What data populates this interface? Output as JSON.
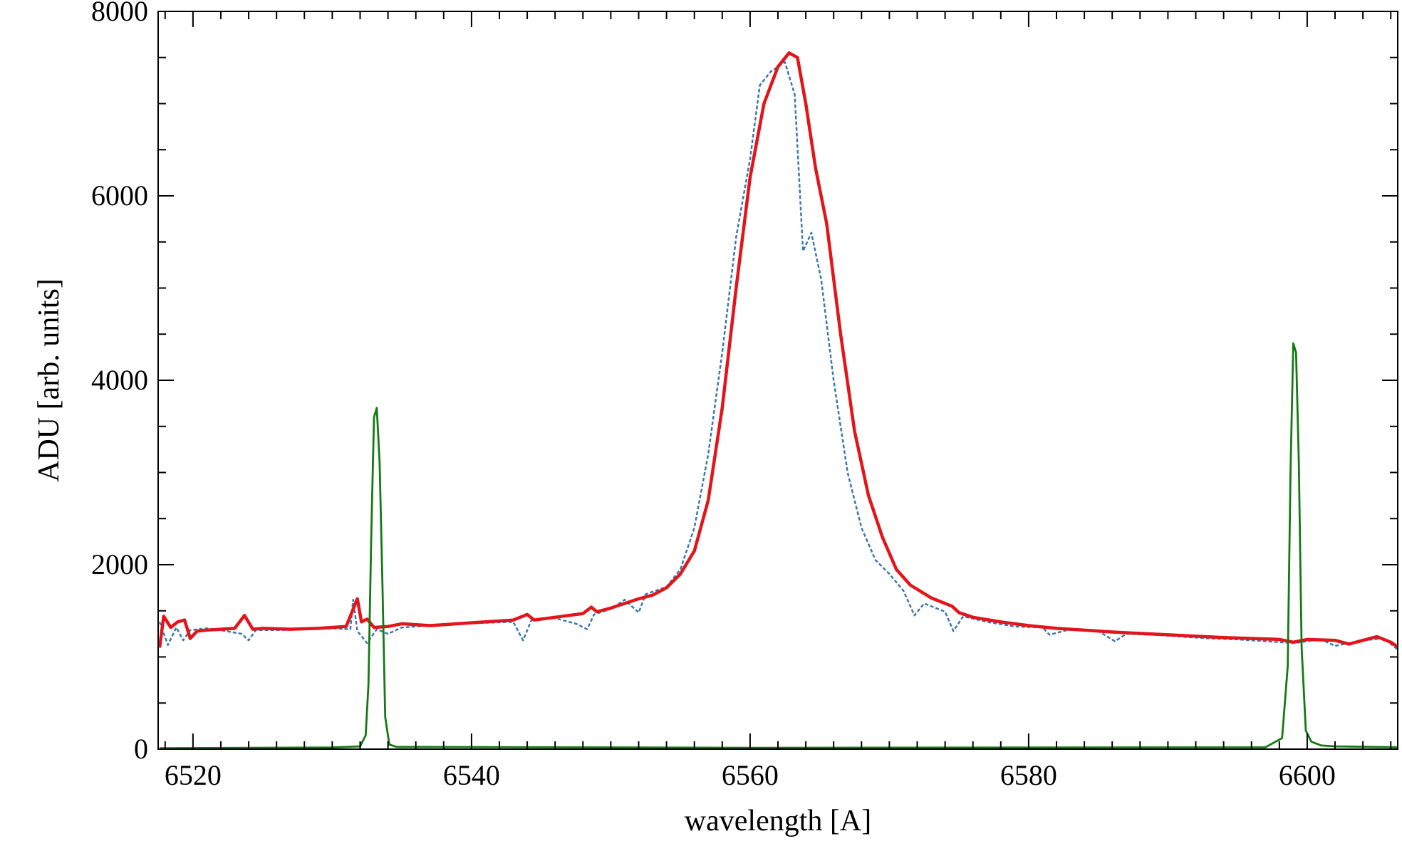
{
  "chart_data": {
    "type": "line",
    "title": "",
    "xlabel": "wavelength [A]",
    "ylabel": "ADU [arb. units]",
    "xlim": [
      6517.5,
      6606.5
    ],
    "ylim": [
      0,
      8000
    ],
    "x_ticks": [
      6520,
      6540,
      6560,
      6580,
      6600
    ],
    "x_tick_labels": [
      "6520",
      "6540",
      "6560",
      "6580",
      "6600"
    ],
    "x_minor_step": 2,
    "y_ticks": [
      0,
      2000,
      4000,
      6000,
      8000
    ],
    "y_tick_labels": [
      "0",
      "2000",
      "4000",
      "6000",
      "8000"
    ],
    "y_minor_step": 500,
    "grid": false,
    "legend": "none",
    "series": [
      {
        "color": "#e3141a",
        "style": "solid",
        "points": [
          [
            6517.6,
            1100
          ],
          [
            6517.9,
            1440
          ],
          [
            6518.4,
            1320
          ],
          [
            6518.9,
            1380
          ],
          [
            6519.4,
            1400
          ],
          [
            6519.8,
            1200
          ],
          [
            6520.3,
            1280
          ],
          [
            6521,
            1290
          ],
          [
            6522,
            1300
          ],
          [
            6523,
            1310
          ],
          [
            6523.7,
            1450
          ],
          [
            6524.3,
            1300
          ],
          [
            6525,
            1310
          ],
          [
            6527,
            1300
          ],
          [
            6529,
            1310
          ],
          [
            6531,
            1330
          ],
          [
            6531.8,
            1630
          ],
          [
            6532.1,
            1380
          ],
          [
            6532.5,
            1410
          ],
          [
            6533,
            1320
          ],
          [
            6534,
            1330
          ],
          [
            6535,
            1360
          ],
          [
            6537,
            1340
          ],
          [
            6539,
            1360
          ],
          [
            6541,
            1380
          ],
          [
            6543,
            1400
          ],
          [
            6544,
            1460
          ],
          [
            6544.5,
            1400
          ],
          [
            6546,
            1430
          ],
          [
            6548,
            1470
          ],
          [
            6548.6,
            1540
          ],
          [
            6549,
            1490
          ],
          [
            6550,
            1530
          ],
          [
            6552,
            1630
          ],
          [
            6553,
            1670
          ],
          [
            6554,
            1750
          ],
          [
            6555,
            1900
          ],
          [
            6556,
            2150
          ],
          [
            6557,
            2700
          ],
          [
            6558,
            3700
          ],
          [
            6559,
            5000
          ],
          [
            6560,
            6200
          ],
          [
            6561,
            7000
          ],
          [
            6562,
            7400
          ],
          [
            6562.8,
            7550
          ],
          [
            6563.4,
            7500
          ],
          [
            6564,
            7000
          ],
          [
            6564.7,
            6300
          ],
          [
            6565.5,
            5700
          ],
          [
            6566.5,
            4500
          ],
          [
            6567.5,
            3450
          ],
          [
            6568.5,
            2750
          ],
          [
            6569.5,
            2300
          ],
          [
            6570.5,
            1950
          ],
          [
            6571.5,
            1780
          ],
          [
            6573,
            1640
          ],
          [
            6574.5,
            1550
          ],
          [
            6575,
            1480
          ],
          [
            6576,
            1430
          ],
          [
            6578,
            1380
          ],
          [
            6580,
            1340
          ],
          [
            6582,
            1310
          ],
          [
            6584,
            1290
          ],
          [
            6586,
            1270
          ],
          [
            6588,
            1255
          ],
          [
            6590,
            1240
          ],
          [
            6592,
            1225
          ],
          [
            6594,
            1210
          ],
          [
            6596,
            1200
          ],
          [
            6598,
            1190
          ],
          [
            6599,
            1160
          ],
          [
            6600,
            1190
          ],
          [
            6602,
            1180
          ],
          [
            6603,
            1140
          ],
          [
            6605,
            1220
          ],
          [
            6606,
            1160
          ],
          [
            6606.5,
            1110
          ]
        ]
      },
      {
        "color": "#3a78b0",
        "style": "dashed",
        "points": [
          [
            6517.6,
            1380
          ],
          [
            6518.2,
            1130
          ],
          [
            6518.8,
            1320
          ],
          [
            6519.3,
            1180
          ],
          [
            6519.8,
            1290
          ],
          [
            6521,
            1310
          ],
          [
            6522,
            1290
          ],
          [
            6523.5,
            1250
          ],
          [
            6524,
            1180
          ],
          [
            6524.5,
            1290
          ],
          [
            6526,
            1290
          ],
          [
            6528,
            1300
          ],
          [
            6530,
            1310
          ],
          [
            6531.3,
            1300
          ],
          [
            6531.5,
            1620
          ],
          [
            6531.8,
            1280
          ],
          [
            6532.5,
            1150
          ],
          [
            6533.2,
            1300
          ],
          [
            6534,
            1250
          ],
          [
            6535,
            1320
          ],
          [
            6537,
            1340
          ],
          [
            6539,
            1360
          ],
          [
            6541,
            1370
          ],
          [
            6543,
            1380
          ],
          [
            6543.7,
            1180
          ],
          [
            6544.3,
            1400
          ],
          [
            6546,
            1420
          ],
          [
            6547.5,
            1360
          ],
          [
            6548.3,
            1300
          ],
          [
            6548.8,
            1460
          ],
          [
            6550,
            1520
          ],
          [
            6551,
            1620
          ],
          [
            6552,
            1480
          ],
          [
            6552.5,
            1680
          ],
          [
            6554,
            1760
          ],
          [
            6555,
            1950
          ],
          [
            6556,
            2400
          ],
          [
            6557,
            3200
          ],
          [
            6558,
            4300
          ],
          [
            6559,
            5550
          ],
          [
            6560,
            6400
          ],
          [
            6560.7,
            7200
          ],
          [
            6561.5,
            7350
          ],
          [
            6562.5,
            7450
          ],
          [
            6563.2,
            7100
          ],
          [
            6563.8,
            5400
          ],
          [
            6564.4,
            5600
          ],
          [
            6565.1,
            5100
          ],
          [
            6566,
            4000
          ],
          [
            6567,
            3000
          ],
          [
            6568,
            2400
          ],
          [
            6569,
            2050
          ],
          [
            6570,
            1900
          ],
          [
            6571,
            1720
          ],
          [
            6571.8,
            1450
          ],
          [
            6572.5,
            1580
          ],
          [
            6574,
            1490
          ],
          [
            6574.6,
            1280
          ],
          [
            6575.3,
            1440
          ],
          [
            6577,
            1380
          ],
          [
            6579,
            1330
          ],
          [
            6581,
            1320
          ],
          [
            6581.5,
            1240
          ],
          [
            6583,
            1300
          ],
          [
            6585,
            1280
          ],
          [
            6586.2,
            1170
          ],
          [
            6587,
            1250
          ],
          [
            6589,
            1240
          ],
          [
            6591,
            1220
          ],
          [
            6593,
            1200
          ],
          [
            6595,
            1190
          ],
          [
            6597,
            1170
          ],
          [
            6599,
            1150
          ],
          [
            6601,
            1190
          ],
          [
            6602,
            1120
          ],
          [
            6604,
            1180
          ],
          [
            6605.5,
            1200
          ],
          [
            6606.5,
            1080
          ]
        ]
      },
      {
        "color": "#157a15",
        "style": "solid",
        "points": [
          [
            6517.6,
            10
          ],
          [
            6530,
            18
          ],
          [
            6532,
            30
          ],
          [
            6532.4,
            150
          ],
          [
            6532.6,
            700
          ],
          [
            6532.8,
            2300
          ],
          [
            6533,
            3600
          ],
          [
            6533.2,
            3700
          ],
          [
            6533.4,
            3100
          ],
          [
            6533.6,
            1800
          ],
          [
            6533.8,
            350
          ],
          [
            6534.1,
            50
          ],
          [
            6534.6,
            25
          ],
          [
            6560,
            15
          ],
          [
            6597,
            20
          ],
          [
            6598.2,
            120
          ],
          [
            6598.6,
            900
          ],
          [
            6598.8,
            3000
          ],
          [
            6599,
            4400
          ],
          [
            6599.2,
            4300
          ],
          [
            6599.4,
            3100
          ],
          [
            6599.6,
            1100
          ],
          [
            6599.9,
            200
          ],
          [
            6600.3,
            80
          ],
          [
            6601,
            40
          ],
          [
            6602,
            30
          ],
          [
            6606.5,
            20
          ]
        ]
      }
    ]
  }
}
